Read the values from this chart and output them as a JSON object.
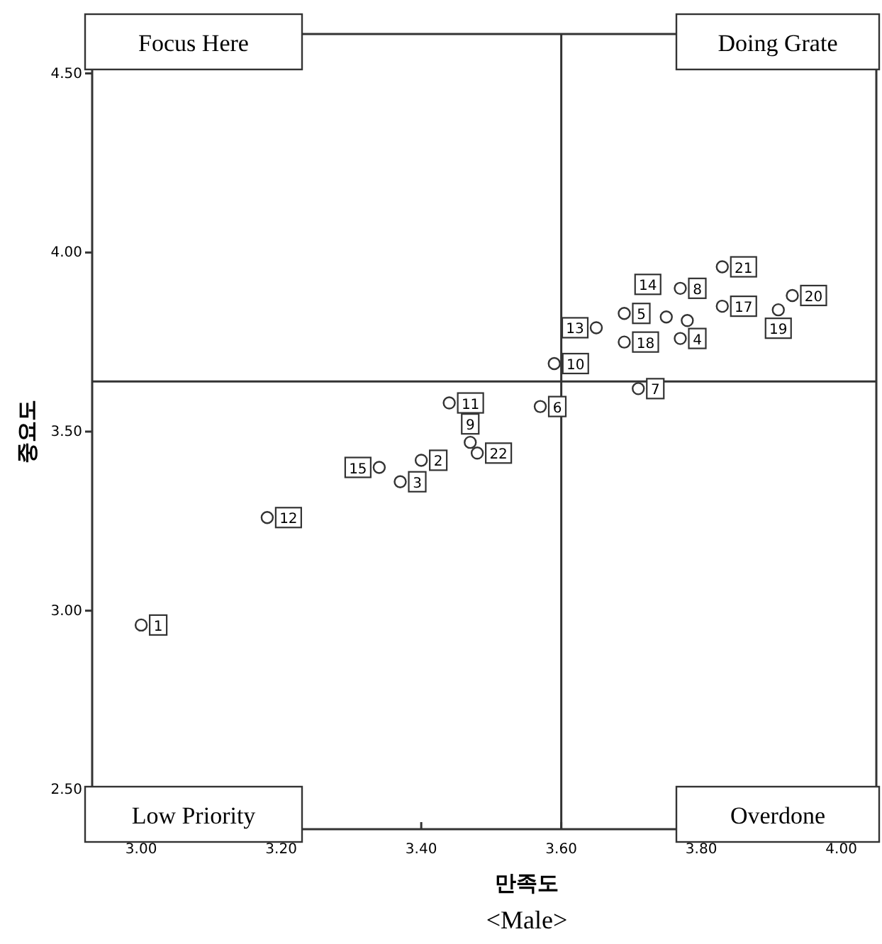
{
  "chart_data": {
    "type": "scatter",
    "xlabel": "만족도",
    "ylabel": "중요도",
    "annotations": [
      "Focus Here",
      "Doing Grate",
      "Low Priority",
      "Overdone",
      "<Male>",
      {
        "text": "1",
        "x": 3.0,
        "y": 2.96
      },
      {
        "text": "2",
        "x": 3.4,
        "y": 3.42
      },
      {
        "text": "3",
        "x": 3.37,
        "y": 3.36
      },
      {
        "text": "4",
        "x": 3.77,
        "y": 3.76
      },
      {
        "text": "5",
        "x": 3.69,
        "y": 3.83
      },
      {
        "text": "6",
        "x": 3.57,
        "y": 3.57
      },
      {
        "text": "7",
        "x": 3.71,
        "y": 3.62
      },
      {
        "text": "8",
        "x": 3.77,
        "y": 3.9
      },
      {
        "text": "9",
        "x": 3.47,
        "y": 3.47
      },
      {
        "text": "10",
        "x": 3.59,
        "y": 3.69
      },
      {
        "text": "11",
        "x": 3.44,
        "y": 3.58
      },
      {
        "text": "12",
        "x": 3.18,
        "y": 3.26
      },
      {
        "text": "13",
        "x": 3.65,
        "y": 3.79
      },
      {
        "text": "14",
        "x": 3.75,
        "y": 3.82
      },
      {
        "text": "15",
        "x": 3.34,
        "y": 3.4
      },
      {
        "text": "17",
        "x": 3.83,
        "y": 3.85
      },
      {
        "text": "18",
        "x": 3.69,
        "y": 3.75
      },
      {
        "text": "19",
        "x": 3.91,
        "y": 3.84
      },
      {
        "text": "20",
        "x": 3.93,
        "y": 3.88
      },
      {
        "text": "21",
        "x": 3.83,
        "y": 3.96
      },
      {
        "text": "22",
        "x": 3.48,
        "y": 3.44
      }
    ],
    "x": [
      3.0,
      3.4,
      3.37,
      3.77,
      3.69,
      3.57,
      3.71,
      3.77,
      3.47,
      3.59,
      3.44,
      3.18,
      3.65,
      3.75,
      3.34,
      3.78,
      3.83,
      3.69,
      3.91,
      3.93,
      3.83,
      3.48
    ],
    "values": [
      2.96,
      3.42,
      3.36,
      3.76,
      3.83,
      3.57,
      3.62,
      3.9,
      3.47,
      3.69,
      3.58,
      3.26,
      3.79,
      3.82,
      3.4,
      3.81,
      3.85,
      3.75,
      3.84,
      3.88,
      3.96,
      3.44
    ],
    "color": "#333333",
    "marker": "circle",
    "grid": false,
    "xlim": [
      2.93,
      4.05
    ],
    "ylim": [
      2.39,
      4.61
    ],
    "xticks": [
      {
        "value": 3,
        "label": "3.00"
      },
      {
        "value": 3.2,
        "label": "3.20"
      },
      {
        "value": 3.4,
        "label": "3.40"
      },
      {
        "value": 3.6,
        "label": "3.60"
      },
      {
        "value": 3.8,
        "label": "3.80"
      },
      {
        "value": 4,
        "label": "4.00"
      }
    ],
    "yticks": [
      {
        "value": 2.5,
        "label": "2.50"
      },
      {
        "value": 3,
        "label": "3.00"
      },
      {
        "value": 3.5,
        "label": "3.50"
      },
      {
        "value": 4,
        "label": "4.00"
      },
      {
        "value": 4.5,
        "label": "4.50"
      }
    ],
    "ref_lines": [
      {
        "axis": "x",
        "value": 3.6
      },
      {
        "axis": "y",
        "value": 3.64
      }
    ]
  }
}
